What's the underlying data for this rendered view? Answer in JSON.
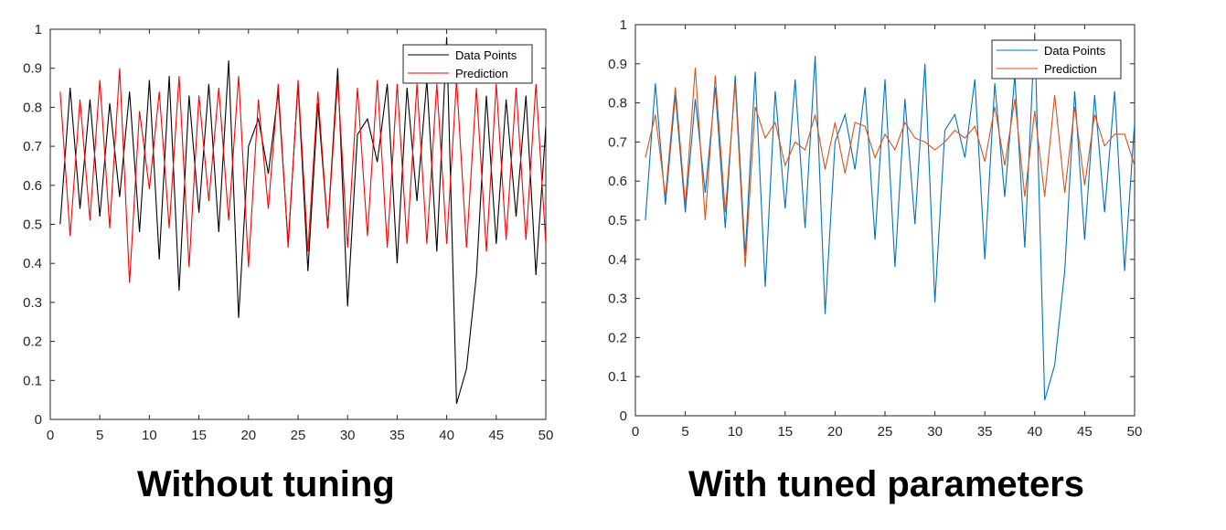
{
  "chart_data": [
    {
      "type": "line",
      "caption": "Without tuning",
      "x": [
        1,
        2,
        3,
        4,
        5,
        6,
        7,
        8,
        9,
        10,
        11,
        12,
        13,
        14,
        15,
        16,
        17,
        18,
        19,
        20,
        21,
        22,
        23,
        24,
        25,
        26,
        27,
        28,
        29,
        30,
        31,
        32,
        33,
        34,
        35,
        36,
        37,
        38,
        39,
        40,
        41,
        42,
        43,
        44,
        45,
        46,
        47,
        48,
        49,
        50
      ],
      "xlim": [
        0,
        50
      ],
      "ylim": [
        0,
        1
      ],
      "xticks": [
        0,
        5,
        10,
        15,
        20,
        25,
        30,
        35,
        40,
        45,
        50
      ],
      "yticks": [
        0,
        0.1,
        0.2,
        0.3,
        0.4,
        0.5,
        0.6,
        0.7,
        0.8,
        0.9,
        1
      ],
      "grid": false,
      "legend": "top-right",
      "series": [
        {
          "name": "Data Points",
          "color": "#000000",
          "values": [
            0.5,
            0.85,
            0.54,
            0.82,
            0.52,
            0.81,
            0.57,
            0.84,
            0.48,
            0.87,
            0.41,
            0.88,
            0.33,
            0.83,
            0.53,
            0.86,
            0.48,
            0.92,
            0.26,
            0.7,
            0.77,
            0.63,
            0.84,
            0.45,
            0.86,
            0.38,
            0.81,
            0.49,
            0.9,
            0.29,
            0.73,
            0.77,
            0.66,
            0.86,
            0.4,
            0.85,
            0.56,
            0.87,
            0.43,
            0.98,
            0.04,
            0.13,
            0.37,
            0.83,
            0.45,
            0.82,
            0.52,
            0.83,
            0.37,
            0.75
          ]
        },
        {
          "name": "Prediction",
          "color": "#ff0000",
          "values": [
            0.84,
            0.47,
            0.82,
            0.51,
            0.87,
            0.49,
            0.9,
            0.35,
            0.79,
            0.59,
            0.84,
            0.49,
            0.88,
            0.39,
            0.83,
            0.56,
            0.85,
            0.51,
            0.88,
            0.39,
            0.82,
            0.54,
            0.86,
            0.44,
            0.87,
            0.43,
            0.84,
            0.49,
            0.87,
            0.44,
            0.85,
            0.47,
            0.87,
            0.44,
            0.86,
            0.45,
            0.86,
            0.45,
            0.86,
            0.45,
            0.87,
            0.44,
            0.85,
            0.43,
            0.86,
            0.46,
            0.85,
            0.46,
            0.86,
            0.45
          ]
        }
      ]
    },
    {
      "type": "line",
      "caption": "With tuned parameters",
      "x": [
        1,
        2,
        3,
        4,
        5,
        6,
        7,
        8,
        9,
        10,
        11,
        12,
        13,
        14,
        15,
        16,
        17,
        18,
        19,
        20,
        21,
        22,
        23,
        24,
        25,
        26,
        27,
        28,
        29,
        30,
        31,
        32,
        33,
        34,
        35,
        36,
        37,
        38,
        39,
        40,
        41,
        42,
        43,
        44,
        45,
        46,
        47,
        48,
        49,
        50
      ],
      "xlim": [
        0,
        50
      ],
      "ylim": [
        0,
        1
      ],
      "xticks": [
        0,
        5,
        10,
        15,
        20,
        25,
        30,
        35,
        40,
        45,
        50
      ],
      "yticks": [
        0,
        0.1,
        0.2,
        0.3,
        0.4,
        0.5,
        0.6,
        0.7,
        0.8,
        0.9,
        1
      ],
      "grid": false,
      "legend": "top-right",
      "series": [
        {
          "name": "Data Points",
          "color": "#0072BD",
          "values": [
            0.5,
            0.85,
            0.54,
            0.82,
            0.52,
            0.81,
            0.57,
            0.84,
            0.48,
            0.87,
            0.41,
            0.88,
            0.33,
            0.83,
            0.53,
            0.86,
            0.48,
            0.92,
            0.26,
            0.7,
            0.77,
            0.63,
            0.84,
            0.45,
            0.86,
            0.38,
            0.81,
            0.49,
            0.9,
            0.29,
            0.73,
            0.77,
            0.66,
            0.86,
            0.4,
            0.85,
            0.56,
            0.87,
            0.43,
            0.98,
            0.04,
            0.13,
            0.37,
            0.83,
            0.45,
            0.82,
            0.52,
            0.83,
            0.37,
            0.75
          ]
        },
        {
          "name": "Prediction",
          "color": "#D95319",
          "values": [
            0.66,
            0.77,
            0.56,
            0.84,
            0.54,
            0.89,
            0.5,
            0.87,
            0.52,
            0.85,
            0.38,
            0.79,
            0.71,
            0.75,
            0.64,
            0.7,
            0.68,
            0.77,
            0.63,
            0.75,
            0.62,
            0.75,
            0.74,
            0.66,
            0.72,
            0.68,
            0.75,
            0.71,
            0.7,
            0.68,
            0.7,
            0.73,
            0.71,
            0.74,
            0.65,
            0.79,
            0.64,
            0.81,
            0.56,
            0.78,
            0.56,
            0.82,
            0.57,
            0.79,
            0.59,
            0.77,
            0.69,
            0.72,
            0.72,
            0.64
          ]
        }
      ]
    }
  ]
}
